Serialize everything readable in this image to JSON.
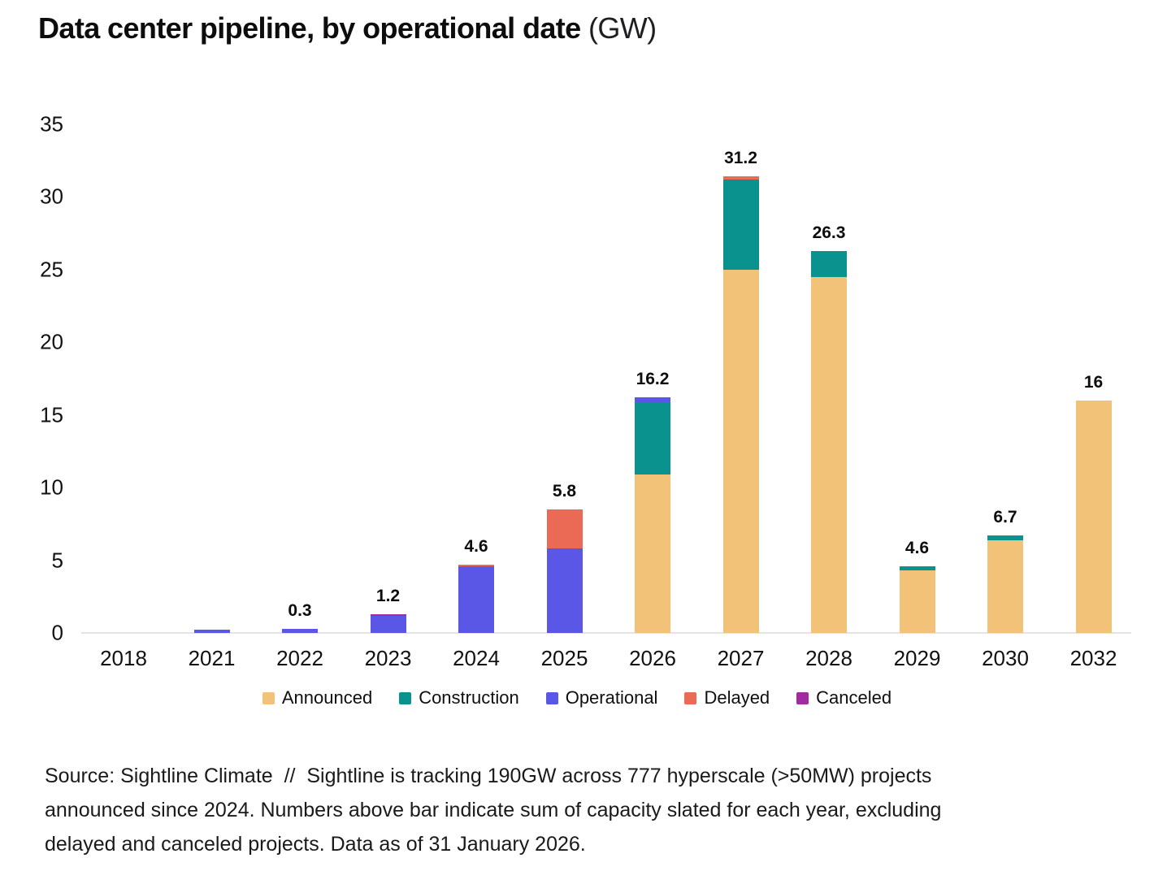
{
  "title": {
    "main": "Data center pipeline, by operational date",
    "unit": "(GW)"
  },
  "chart_data": {
    "type": "bar",
    "stacked": true,
    "title": "Data center pipeline, by operational date (GW)",
    "xlabel": "",
    "ylabel": "",
    "ylim": [
      0,
      35
    ],
    "yticks": [
      0,
      5,
      10,
      15,
      20,
      25,
      30,
      35
    ],
    "grid": false,
    "categories": [
      "2018",
      "2021",
      "2022",
      "2023",
      "2024",
      "2025",
      "2026",
      "2027",
      "2028",
      "2029",
      "2030",
      "2032"
    ],
    "series": [
      {
        "name": "Announced",
        "color": "#F2C279",
        "values": [
          0,
          0,
          0,
          0,
          0,
          0,
          10.9,
          25.0,
          24.5,
          4.3,
          6.4,
          16.0
        ]
      },
      {
        "name": "Construction",
        "color": "#0A938E",
        "values": [
          0,
          0,
          0,
          0,
          0,
          0,
          5.0,
          6.2,
          1.8,
          0.3,
          0.3,
          0
        ]
      },
      {
        "name": "Operational",
        "color": "#5B57E6",
        "values": [
          0,
          0.2,
          0.3,
          1.2,
          4.6,
          5.8,
          0.3,
          0,
          0,
          0,
          0,
          0
        ]
      },
      {
        "name": "Delayed",
        "color": "#EB6A56",
        "values": [
          0,
          0,
          0,
          0,
          0.1,
          2.7,
          0,
          0.25,
          0,
          0,
          0,
          0
        ]
      },
      {
        "name": "Canceled",
        "color": "#A12C9E",
        "values": [
          0,
          0,
          0,
          0.08,
          0,
          0,
          0,
          0,
          0,
          0,
          0,
          0
        ]
      }
    ],
    "bar_labels": [
      "",
      "",
      "0.3",
      "1.2",
      "4.6",
      "5.8",
      "16.2",
      "31.2",
      "26.3",
      "4.6",
      "6.7",
      "16"
    ],
    "legend": {
      "position": "bottom",
      "entries": [
        {
          "name": "Announced",
          "color": "#F2C279"
        },
        {
          "name": "Construction",
          "color": "#0A938E"
        },
        {
          "name": "Operational",
          "color": "#5B57E6"
        },
        {
          "name": "Delayed",
          "color": "#EB6A56"
        },
        {
          "name": "Canceled",
          "color": "#A12C9E"
        }
      ]
    }
  },
  "source": {
    "lines": [
      "Source: Sightline Climate  //  Sightline is tracking 190GW across 777 hyperscale (>50MW) projects",
      "announced since 2024. Numbers above bar indicate sum of capacity slated for each year, excluding",
      "delayed and canceled projects. Data as of 31 January 2026."
    ]
  }
}
